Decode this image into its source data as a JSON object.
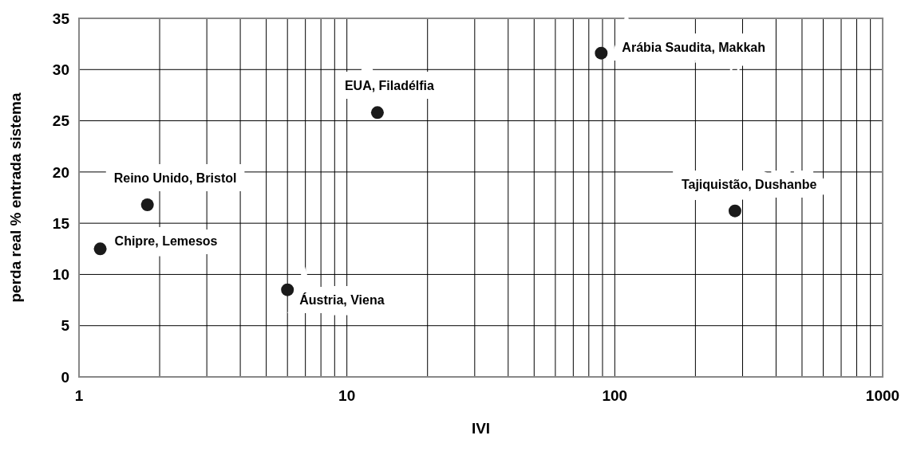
{
  "chart_data": {
    "type": "scatter",
    "xlabel": "IVI",
    "ylabel": "perda real % entrada sistema",
    "log": "x",
    "grid": true,
    "marker": "circle",
    "xlim": [
      1,
      1000
    ],
    "ylim": [
      0,
      35
    ],
    "xticks": [
      1,
      {
        "value": 2,
        "label": null
      },
      {
        "value": 3,
        "label": null
      },
      {
        "value": 4,
        "label": null
      },
      {
        "value": 5,
        "label": null
      },
      {
        "value": 6,
        "label": null
      },
      {
        "value": 7,
        "label": null
      },
      {
        "value": 8,
        "label": null
      },
      {
        "value": 9,
        "label": null
      },
      10,
      {
        "value": 20,
        "label": null
      },
      {
        "value": 30,
        "label": null
      },
      {
        "value": 40,
        "label": null
      },
      {
        "value": 50,
        "label": null
      },
      {
        "value": 60,
        "label": null
      },
      {
        "value": 70,
        "label": null
      },
      {
        "value": 80,
        "label": null
      },
      {
        "value": 90,
        "label": null
      },
      100,
      {
        "value": 200,
        "label": null
      },
      {
        "value": 300,
        "label": null
      },
      {
        "value": 400,
        "label": null
      },
      {
        "value": 500,
        "label": null
      },
      {
        "value": 600,
        "label": null
      },
      {
        "value": 700,
        "label": null
      },
      {
        "value": 800,
        "label": null
      },
      {
        "value": 900,
        "label": null
      },
      1000
    ],
    "yticks": [
      0,
      5,
      10,
      15,
      20,
      25,
      30,
      35
    ],
    "series": [
      {
        "color": "#1a1a1a",
        "x": [
          1.2,
          1.8,
          6.0,
          13,
          89,
          281
        ],
        "values": [
          12.5,
          16.8,
          8.5,
          25.8,
          31.6,
          16.2
        ]
      }
    ],
    "annotations": [
      {
        "text": "Chipre, Lemesos",
        "x": 1.2,
        "y": 12.5
      },
      {
        "text": "Reino Unido, Bristol",
        "x": 1.8,
        "y": 16.8
      },
      {
        "text": "Áustria, Viena",
        "x": 6.0,
        "y": 8.5
      },
      {
        "text": "EUA, Filadélfia",
        "x": 13,
        "y": 25.8
      },
      {
        "text": "Arábia Saudita, Makkah",
        "x": 89,
        "y": 31.6
      },
      {
        "text": "Tajiquistão, Dushanbe",
        "x": 281,
        "y": 16.2
      }
    ]
  }
}
